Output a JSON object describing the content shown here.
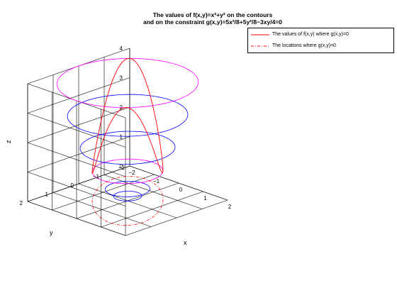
{
  "title": {
    "line1": "The values of f(x,y)=x²+y² on the contours",
    "line2": "and on the constraint g(x,y)=5x²/8+5y²/8−3xy/4=0"
  },
  "legend": {
    "placement": "top-right",
    "entries": [
      {
        "label": "The values of f(x,y) where g(x,y)=0",
        "color": "#ff0000",
        "style": "solid"
      },
      {
        "label": "The locations where g(x,y)=0",
        "color": "#ff0000",
        "style": "dash-dot"
      }
    ]
  },
  "chart_data": {
    "type": "line",
    "projection": "3d",
    "grid": true,
    "xlabel": "x",
    "ylabel": "y",
    "zlabel": "z",
    "xlim": [
      -2,
      2
    ],
    "ylim": [
      -2,
      2
    ],
    "zlim": [
      0,
      4
    ],
    "xticks": [
      "−2",
      "−1",
      "0",
      "1",
      "2"
    ],
    "yticks": [
      "−2",
      "−1",
      "0",
      "1",
      "2"
    ],
    "zticks": [
      "0",
      "1",
      "2",
      "3",
      "4"
    ],
    "contour_levels": [
      0.16,
      0.4,
      1.0,
      1.8,
      2.9,
      4.0
    ],
    "contour_colors": [
      "#0000ff",
      "#0000ff",
      "#ff00ff",
      "#0000ff",
      "#0000ff",
      "#ff00ff"
    ],
    "constraint_ellipse": {
      "a": 2.0,
      "b": 1.0,
      "angle_deg": 45
    },
    "series": [
      {
        "name": "The values of f(x,y) where g(x,y)=0",
        "color": "#ff0000",
        "style": "solid"
      },
      {
        "name": "The locations where g(x,y)=0",
        "color": "#ff0000",
        "style": "dash-dot"
      }
    ]
  }
}
